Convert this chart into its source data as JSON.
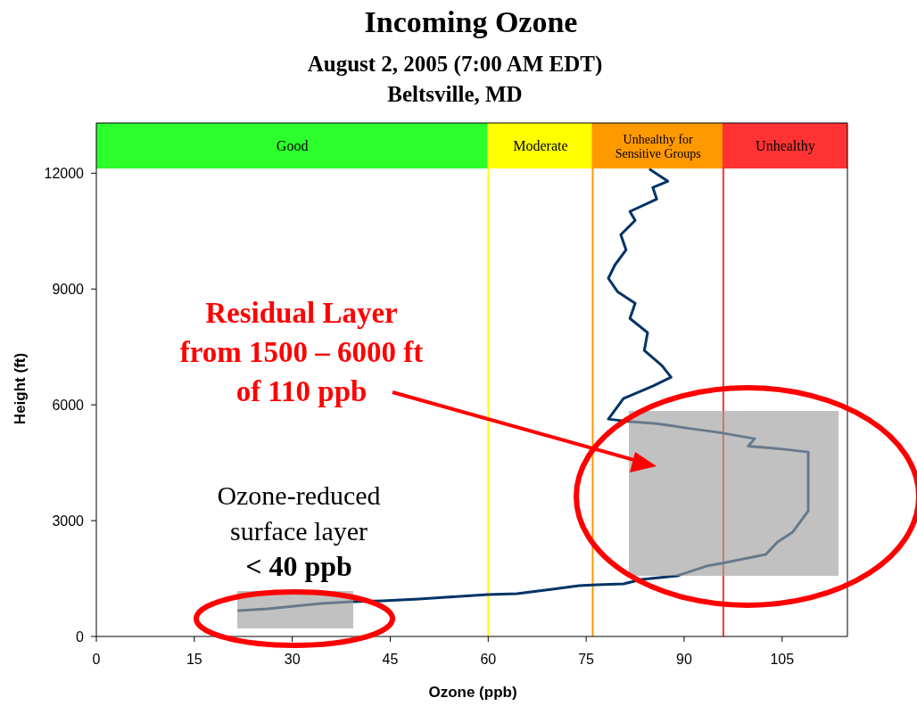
{
  "chart_data": {
    "type": "line",
    "title": "Incoming Ozone",
    "subtitle": "August 2, 2005 (7:00 AM EDT)\nBeltsville, MD",
    "xlabel": "Ozone (ppb)",
    "ylabel": "Height (ft)",
    "series": [
      {
        "color": "#003366",
        "x": [
          21.8,
          26.2,
          30.3,
          34.4,
          39.1,
          43.9,
          49.4,
          53.5,
          59.9,
          64.4,
          69.8,
          73.9,
          76.6,
          80.7,
          83.5,
          86.2,
          88.9,
          93.4,
          95.7,
          102.5,
          104.3,
          106.6,
          108,
          109,
          109,
          109,
          109,
          104.3,
          99.8,
          100.8,
          95.3,
          90.3,
          85.8,
          81.8,
          78.4,
          80.7,
          85.2,
          88,
          86.6,
          83.9,
          84.4,
          81.7,
          82.5,
          79.8,
          78.4,
          79.4,
          81.1,
          80.3,
          82.5,
          81.7,
          85.8,
          85.2,
          87.5,
          84.8
        ],
        "values": [
          669,
          715,
          785,
          854,
          900,
          923,
          969,
          1015,
          1085,
          1108,
          1223,
          1315,
          1338,
          1362,
          1477,
          1523,
          1570,
          1823,
          1892,
          2123,
          2446,
          2700,
          3023,
          3254,
          3785,
          4315,
          4777,
          4869,
          4930,
          5123,
          5285,
          5400,
          5515,
          5562,
          5631,
          6162,
          6485,
          6715,
          7015,
          7408,
          7869,
          8238,
          8631,
          8931,
          9277,
          9623,
          10015,
          10408,
          10777,
          11008,
          11331,
          11631,
          11792,
          12092
        ]
      }
    ],
    "xlim": [
      0,
      115
    ],
    "ylim": [
      0,
      13300
    ],
    "xticks": [
      0,
      15,
      30,
      45,
      60,
      75,
      90,
      105
    ],
    "yticks": [
      0,
      3000,
      6000,
      9000,
      12000
    ],
    "bands": [
      {
        "axis": "x",
        "from": 0,
        "to": 60,
        "label": "Good",
        "color": "#2cff2c"
      },
      {
        "axis": "x",
        "from": 60,
        "to": 76,
        "label": "Moderate",
        "color": "#ffff00"
      },
      {
        "axis": "x",
        "from": 76,
        "to": 96,
        "label": "Unhealthy for\nSensitive Groups",
        "color": "#ff9900"
      },
      {
        "axis": "x",
        "from": 96,
        "to": 115,
        "label": "Unhealthy",
        "color": "#ff3333"
      }
    ],
    "ref_lines": [
      {
        "axis": "x",
        "value": 60,
        "color": "#ffff00"
      },
      {
        "axis": "x",
        "value": 76,
        "color": "#ff9900"
      },
      {
        "axis": "x",
        "value": 96,
        "color": "#ff3333"
      }
    ],
    "annotations": [
      "Residual Layer\nfrom 1500 – 6000 ft\nof 110 ppb",
      "Ozone-reduced\nsurface layer\n< 40 ppb"
    ],
    "grid": false,
    "marker": "none",
    "line_style": "solid"
  }
}
